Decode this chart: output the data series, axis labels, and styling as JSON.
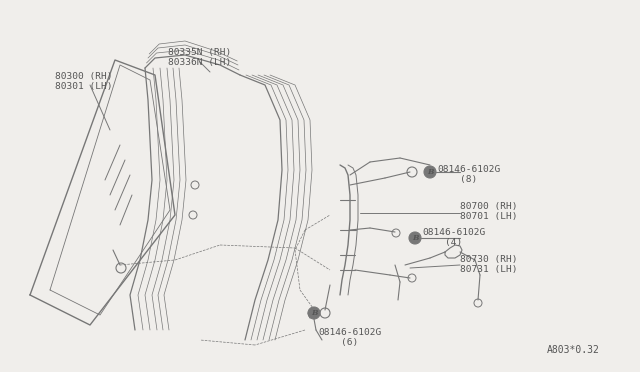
{
  "bg_color": "#f0eeeb",
  "line_color": "#777777",
  "text_color": "#555555",
  "part_number_code": "A803*0.32",
  "font_size": 6.8,
  "glass_label": "80300 (RH)\n80301 (LH)",
  "run_label": "80335N (RH)\n80336N (LH)",
  "bolt1_label": "B08146-6102G\n    (8)",
  "reg_label": "80700 (RH)\n80701 (LH)",
  "bolt2_label": "B08146-6102G\n    (4)",
  "handle_label": "80730 (RH)\n80731 (LH)",
  "bolt3_label": "B08146-6102G\n    (6)"
}
